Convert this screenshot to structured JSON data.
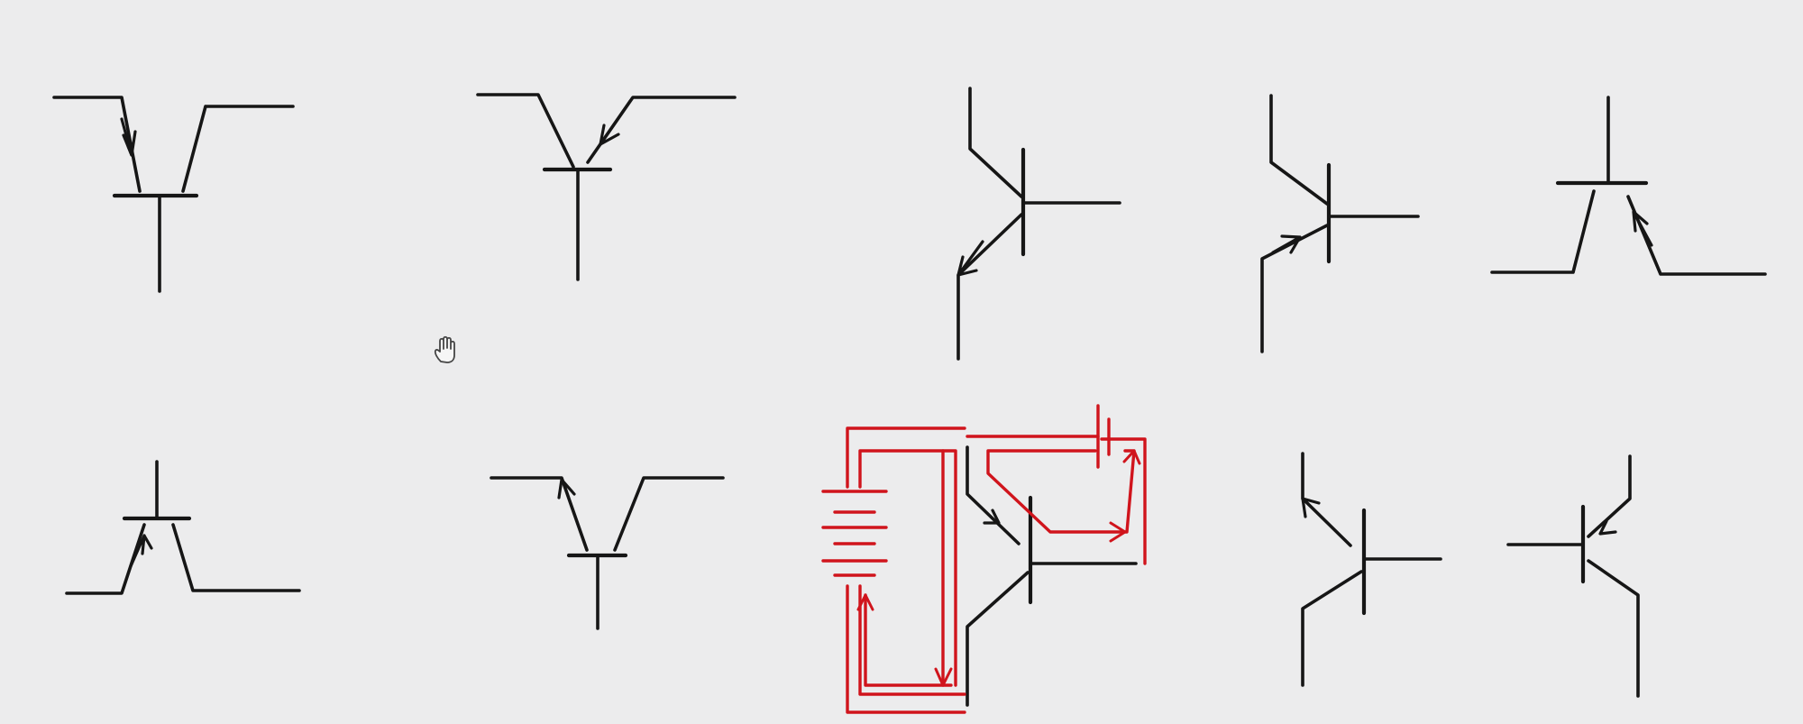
{
  "diagram": {
    "background": "#ececed",
    "symbol_color": "#161616",
    "highlight_color": "#d0141c",
    "symbols": [
      {
        "name": "transistor-symbol-1",
        "row": 1,
        "col": 1,
        "orientation": "base-down",
        "arrow": "into-junction",
        "highlighted": false
      },
      {
        "name": "transistor-symbol-2",
        "row": 1,
        "col": 2,
        "orientation": "base-down",
        "arrow": "into-junction",
        "highlighted": false
      },
      {
        "name": "transistor-symbol-3",
        "row": 1,
        "col": 3,
        "orientation": "base-right",
        "arrow": "out-of-junction",
        "highlighted": false
      },
      {
        "name": "transistor-symbol-4",
        "row": 1,
        "col": 4,
        "orientation": "base-right",
        "arrow": "into-junction",
        "highlighted": false
      },
      {
        "name": "transistor-symbol-5",
        "row": 1,
        "col": 5,
        "orientation": "base-up",
        "arrow": "into-junction",
        "highlighted": false
      },
      {
        "name": "transistor-symbol-6",
        "row": 2,
        "col": 1,
        "orientation": "base-up",
        "arrow": "into-junction",
        "highlighted": false
      },
      {
        "name": "transistor-symbol-7",
        "row": 2,
        "col": 2,
        "orientation": "base-down",
        "arrow": "out-of-junction",
        "highlighted": false
      },
      {
        "name": "transistor-circuit-highlighted",
        "row": 2,
        "col": 3,
        "orientation": "base-right",
        "arrow": "none",
        "highlighted": true
      },
      {
        "name": "transistor-symbol-9",
        "row": 2,
        "col": 4,
        "orientation": "base-right",
        "arrow": "out-of-junction",
        "highlighted": false
      },
      {
        "name": "transistor-symbol-10",
        "row": 2,
        "col": 5,
        "orientation": "base-left",
        "arrow": "into-junction",
        "highlighted": false
      }
    ],
    "cursor_icon": "hand-cursor-icon"
  }
}
